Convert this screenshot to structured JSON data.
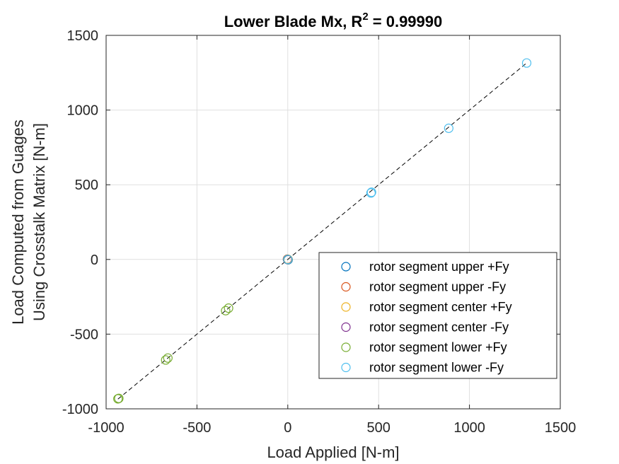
{
  "chart_data": {
    "type": "scatter",
    "title": "Lower Blade Mx, R",
    "title_superscript": "2",
    "title_suffix": " = 0.99990",
    "xlabel": "Load Applied [N-m]",
    "ylabel_lines": [
      "Load Computed from Guages",
      "Using Crosstalk Matrix [N-m]"
    ],
    "xlim": [
      -1000,
      1500
    ],
    "ylim": [
      -1000,
      1500
    ],
    "xticks": [
      -1000,
      -500,
      0,
      500,
      1000,
      1500
    ],
    "yticks": [
      -1000,
      -500,
      0,
      500,
      1000,
      1500
    ],
    "xtick_labels": [
      "-1000",
      "-500",
      "0",
      "500",
      "1000",
      "1500"
    ],
    "ytick_labels": [
      "-1000",
      "-500",
      "0",
      "500",
      "1000",
      "1500"
    ],
    "grid": true,
    "legend_position": "bottom-right",
    "fit_line": {
      "style": "dashed",
      "color": "#000000",
      "x": [
        -935,
        1315
      ],
      "y": [
        -935,
        1315
      ]
    },
    "series": [
      {
        "name": "rotor segment upper +Fy",
        "color": "#0072BD",
        "points": [
          [
            0,
            0
          ],
          [
            2,
            -2
          ]
        ]
      },
      {
        "name": "rotor segment upper -Fy",
        "color": "#D95319",
        "points": [
          [
            0,
            0
          ],
          [
            -2,
            2
          ]
        ]
      },
      {
        "name": "rotor segment center +Fy",
        "color": "#EDB120",
        "points": [
          [
            0,
            0
          ],
          [
            1,
            1
          ]
        ]
      },
      {
        "name": "rotor segment center -Fy",
        "color": "#7E2F8E",
        "points": [
          [
            0,
            0
          ],
          [
            -1,
            -1
          ]
        ]
      },
      {
        "name": "rotor segment lower +Fy",
        "color": "#77AC30",
        "points": [
          [
            -935,
            -933
          ],
          [
            -930,
            -930
          ],
          [
            -672,
            -673
          ],
          [
            -660,
            -660
          ],
          [
            -342,
            -343
          ],
          [
            -326,
            -326
          ],
          [
            0,
            0
          ]
        ]
      },
      {
        "name": "rotor segment lower -Fy",
        "color": "#4DBEEE",
        "points": [
          [
            0,
            0
          ],
          [
            458,
            445
          ],
          [
            461,
            450
          ],
          [
            886,
            878
          ],
          [
            1315,
            1315
          ]
        ]
      }
    ]
  }
}
